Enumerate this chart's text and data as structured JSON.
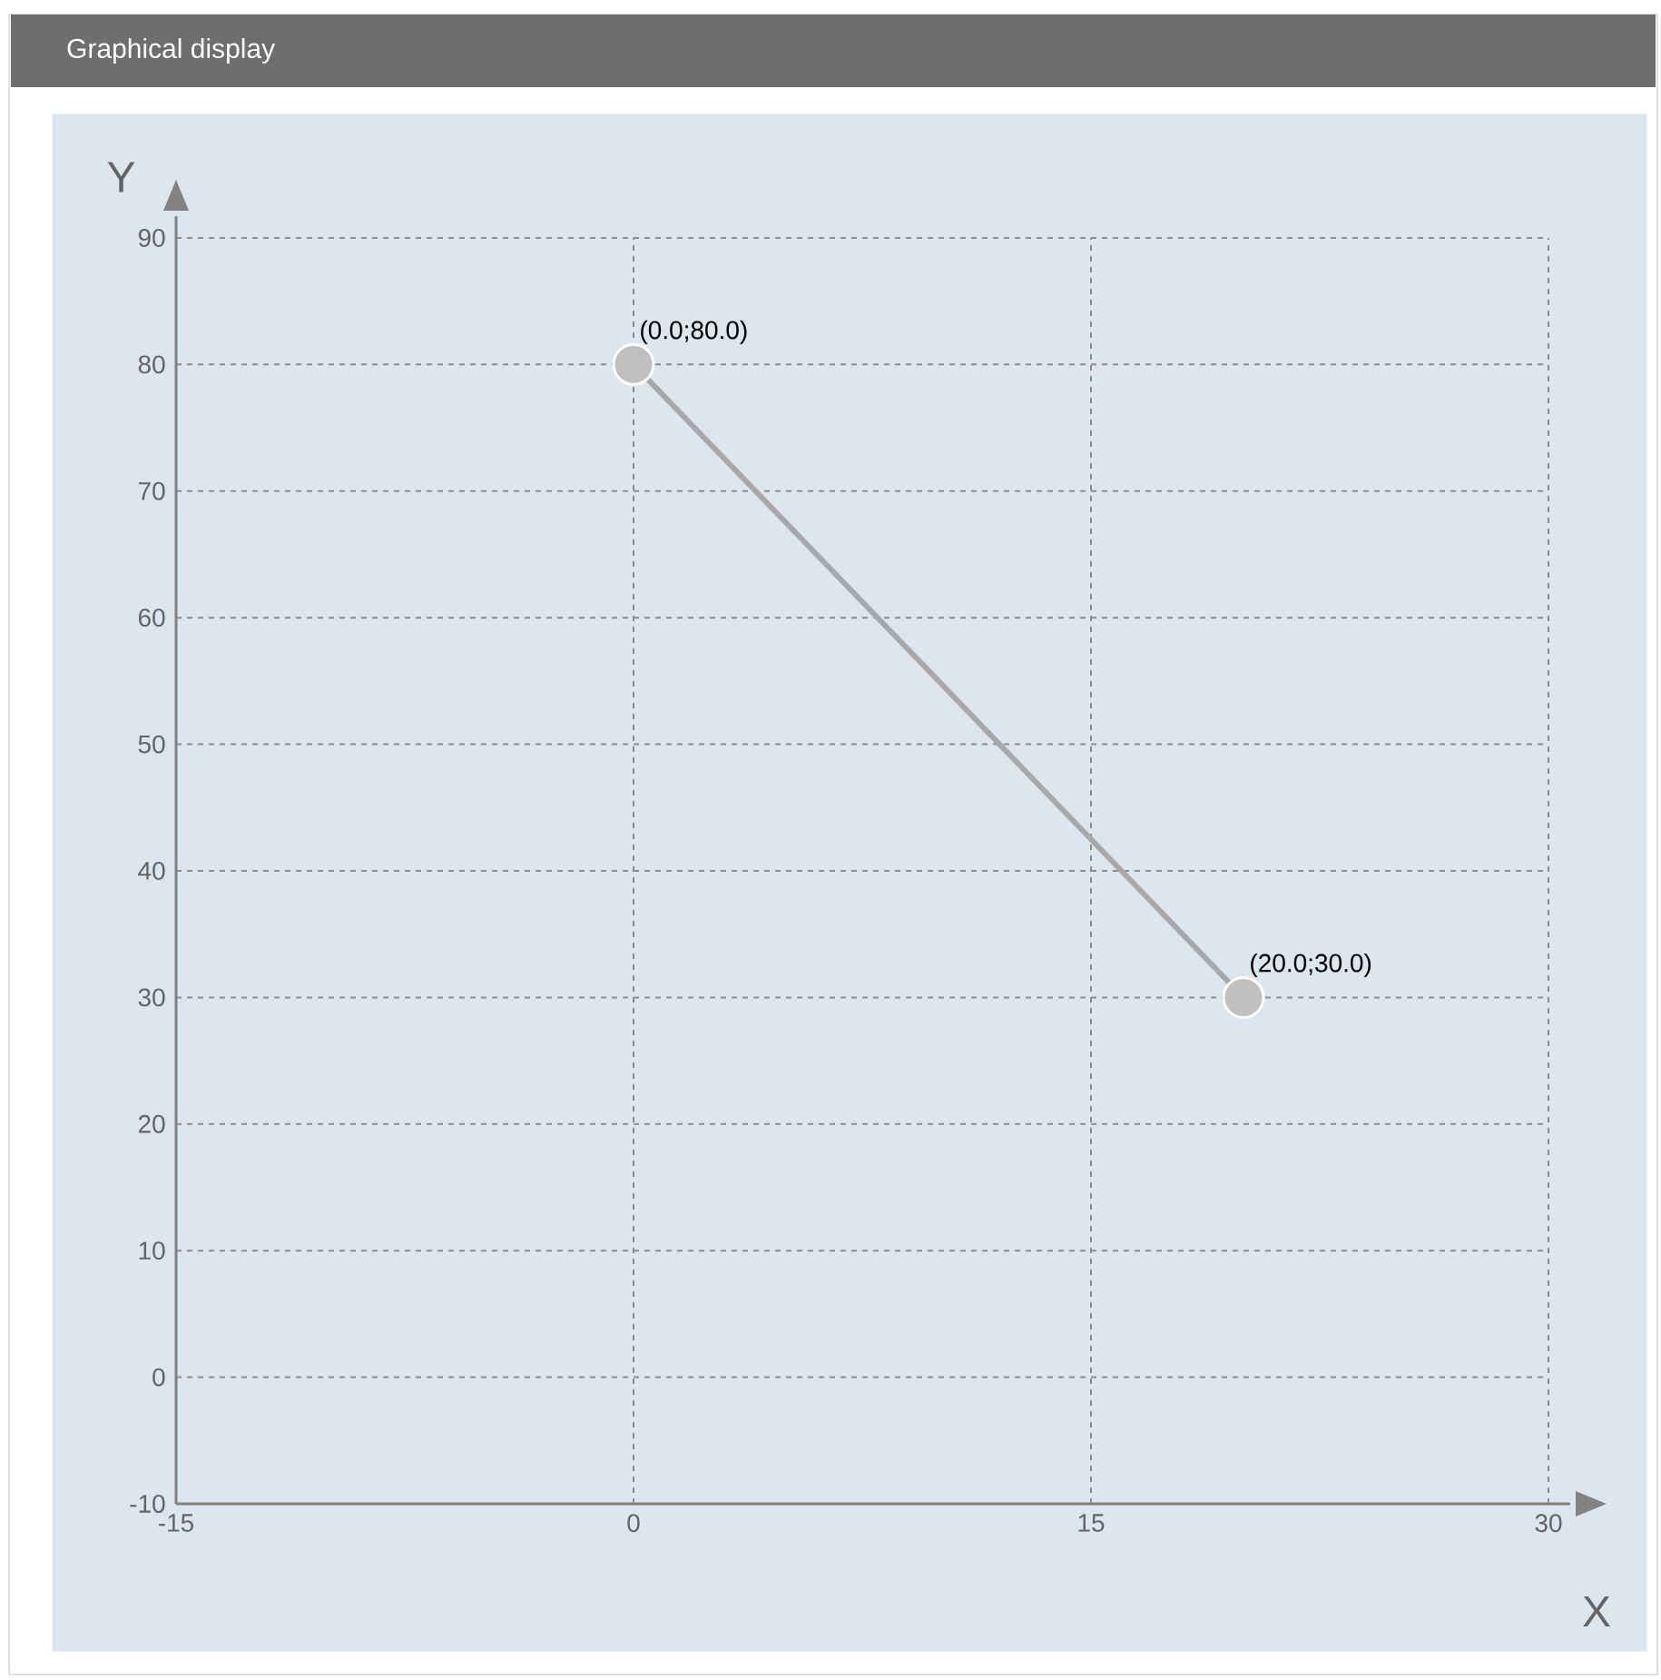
{
  "chart_data": {
    "type": "line",
    "title": "Graphical display",
    "xlabel": "X",
    "ylabel": "Y",
    "x": [
      0,
      20
    ],
    "series": [
      {
        "color": "#a8a8a8",
        "values": [
          80,
          30
        ],
        "value_labels": [
          "(0.0;80.0)",
          "(20.0;30.0)"
        ]
      }
    ],
    "marker": "circle",
    "grid": true,
    "xlim": [
      -15,
      30
    ],
    "xticks": [
      -15,
      0,
      15,
      30
    ],
    "ylim": [
      -10,
      90
    ],
    "yticks": [
      -10,
      0,
      10,
      20,
      30,
      40,
      50,
      60,
      70,
      80,
      90
    ]
  }
}
